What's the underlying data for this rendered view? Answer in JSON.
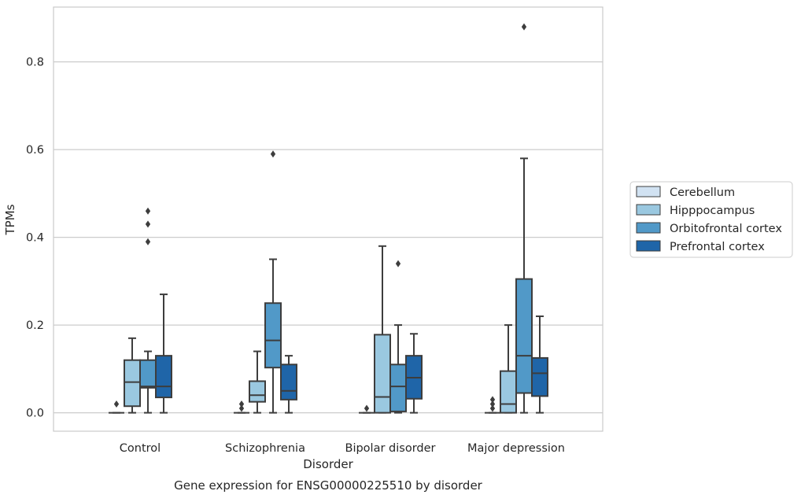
{
  "chart_data": {
    "type": "box",
    "title": "",
    "xlabel": "Disorder",
    "ylabel": "TPMs",
    "caption": "Gene expression for ENSG00000225510 by disorder",
    "categories": [
      "Control",
      "Schizophrenia",
      "Bipolar disorder",
      "Major depression"
    ],
    "ylim": [
      -0.042,
      0.925
    ],
    "yticks": [
      0.0,
      0.2,
      0.4,
      0.6,
      0.8
    ],
    "yticklabels": [
      "0.0",
      "0.2",
      "0.4",
      "0.6",
      "0.8"
    ],
    "grid": "horizontal",
    "legend_position": "right",
    "series": [
      {
        "name": "Cerebellum",
        "color": "#d1e2f2",
        "boxes": [
          {
            "whislo": 0.0,
            "q1": 0.0,
            "median": 0.0,
            "q3": 0.0,
            "whishi": 0.0,
            "fliers": [
              0.02
            ]
          },
          {
            "whislo": 0.0,
            "q1": 0.0,
            "median": 0.0,
            "q3": 0.0,
            "whishi": 0.0,
            "fliers": [
              0.01,
              0.02
            ]
          },
          {
            "whislo": 0.0,
            "q1": 0.0,
            "median": 0.0,
            "q3": 0.0,
            "whishi": 0.0,
            "fliers": [
              0.01
            ]
          },
          {
            "whislo": 0.0,
            "q1": 0.0,
            "median": 0.0,
            "q3": 0.0,
            "whishi": 0.0,
            "fliers": [
              0.01,
              0.02,
              0.03
            ]
          }
        ]
      },
      {
        "name": "Hipppocampus",
        "color": "#9ac8e0",
        "boxes": [
          {
            "whislo": 0.0,
            "q1": 0.015,
            "median": 0.07,
            "q3": 0.12,
            "whishi": 0.17,
            "fliers": []
          },
          {
            "whislo": 0.0,
            "q1": 0.025,
            "median": 0.04,
            "q3": 0.072,
            "whishi": 0.14,
            "fliers": []
          },
          {
            "whislo": 0.0,
            "q1": 0.0,
            "median": 0.036,
            "q3": 0.178,
            "whishi": 0.38,
            "fliers": []
          },
          {
            "whislo": 0.0,
            "q1": 0.0,
            "median": 0.02,
            "q3": 0.095,
            "whishi": 0.2,
            "fliers": []
          }
        ]
      },
      {
        "name": "Orbitofrontal cortex",
        "color": "#5199c8",
        "boxes": [
          {
            "whislo": 0.0,
            "q1": 0.057,
            "median": 0.06,
            "q3": 0.12,
            "whishi": 0.14,
            "fliers": [
              0.39,
              0.43,
              0.46
            ]
          },
          {
            "whislo": 0.0,
            "q1": 0.103,
            "median": 0.165,
            "q3": 0.25,
            "whishi": 0.35,
            "fliers": [
              0.59
            ]
          },
          {
            "whislo": 0.0,
            "q1": 0.003,
            "median": 0.06,
            "q3": 0.11,
            "whishi": 0.2,
            "fliers": [
              0.34
            ]
          },
          {
            "whislo": 0.0,
            "q1": 0.045,
            "median": 0.13,
            "q3": 0.305,
            "whishi": 0.58,
            "fliers": [
              0.88
            ]
          }
        ]
      },
      {
        "name": "Prefrontal cortex",
        "color": "#1f65a8",
        "boxes": [
          {
            "whislo": 0.0,
            "q1": 0.035,
            "median": 0.06,
            "q3": 0.13,
            "whishi": 0.27,
            "fliers": []
          },
          {
            "whislo": 0.0,
            "q1": 0.03,
            "median": 0.05,
            "q3": 0.11,
            "whishi": 0.13,
            "fliers": []
          },
          {
            "whislo": 0.0,
            "q1": 0.032,
            "median": 0.08,
            "q3": 0.13,
            "whishi": 0.18,
            "fliers": []
          },
          {
            "whislo": 0.0,
            "q1": 0.038,
            "median": 0.09,
            "q3": 0.125,
            "whishi": 0.22,
            "fliers": []
          }
        ]
      }
    ]
  }
}
